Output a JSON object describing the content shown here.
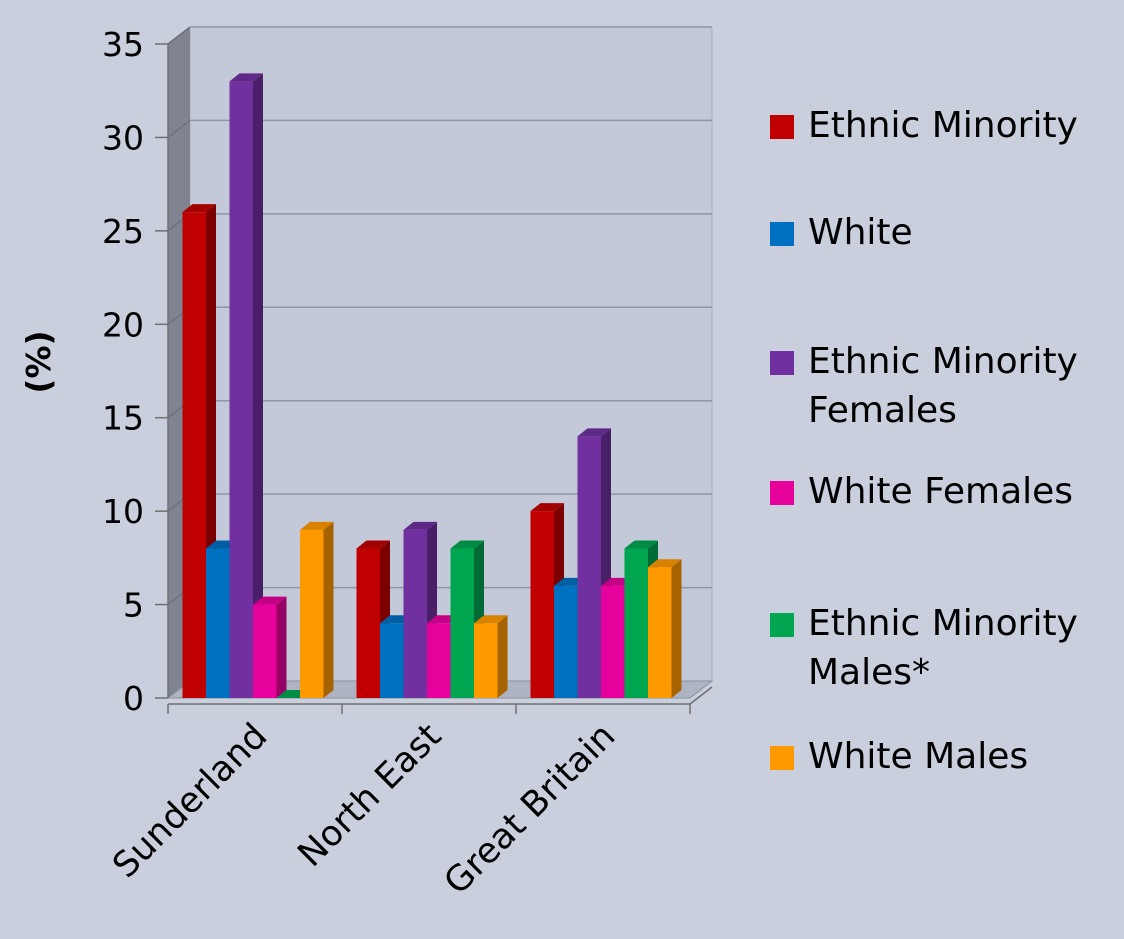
{
  "chart_data": {
    "type": "bar",
    "title": "",
    "xlabel": "",
    "ylabel": "(%)",
    "ylim": [
      0,
      35
    ],
    "yticks": [
      0,
      5,
      10,
      15,
      20,
      25,
      30,
      35
    ],
    "categories": [
      "Sunderland",
      "North East",
      "Great Britain"
    ],
    "series": [
      {
        "name": "Ethnic Minority",
        "color": "#c00000",
        "values": [
          26,
          8,
          10
        ]
      },
      {
        "name": "White",
        "color": "#0070c0",
        "values": [
          8,
          4,
          6
        ]
      },
      {
        "name": "Ethnic Minority Females",
        "color": "#7030a0",
        "values": [
          33,
          9,
          14
        ]
      },
      {
        "name": "White Females",
        "color": "#e6009c",
        "values": [
          5,
          4,
          6
        ]
      },
      {
        "name": "Ethnic Minority Males*",
        "color": "#00a550",
        "values": [
          0,
          8,
          8
        ]
      },
      {
        "name": "White Males",
        "color": "#ff9900",
        "values": [
          9,
          4,
          7
        ]
      }
    ],
    "legend": {
      "position": "right",
      "items": [
        {
          "lines": [
            "Ethnic Minority"
          ]
        },
        {
          "lines": [
            "White"
          ]
        },
        {
          "lines": [
            "Ethnic Minority",
            "Females"
          ]
        },
        {
          "lines": [
            "White Females"
          ]
        },
        {
          "lines": [
            "Ethnic Minority",
            "Males*"
          ]
        },
        {
          "lines": [
            "White Males"
          ]
        }
      ]
    },
    "grid": true,
    "style": "3d-clustered-bar"
  }
}
